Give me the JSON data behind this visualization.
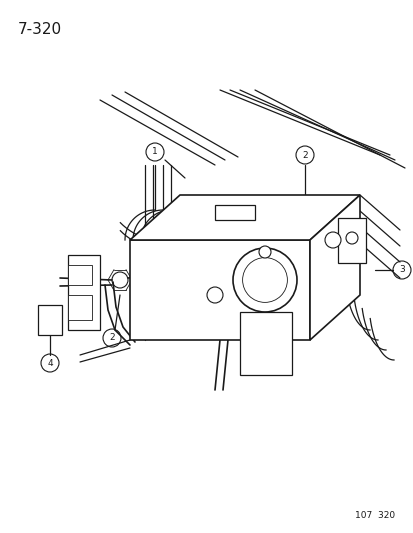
{
  "title": "7-320",
  "footer": "107  320",
  "bg": "#ffffff",
  "lc": "#1a1a1a",
  "title_fontsize": 11,
  "footer_fontsize": 6.5,
  "figsize": [
    4.14,
    5.33
  ],
  "dpi": 100,
  "gray": "#888888",
  "light_gray": "#cccccc"
}
